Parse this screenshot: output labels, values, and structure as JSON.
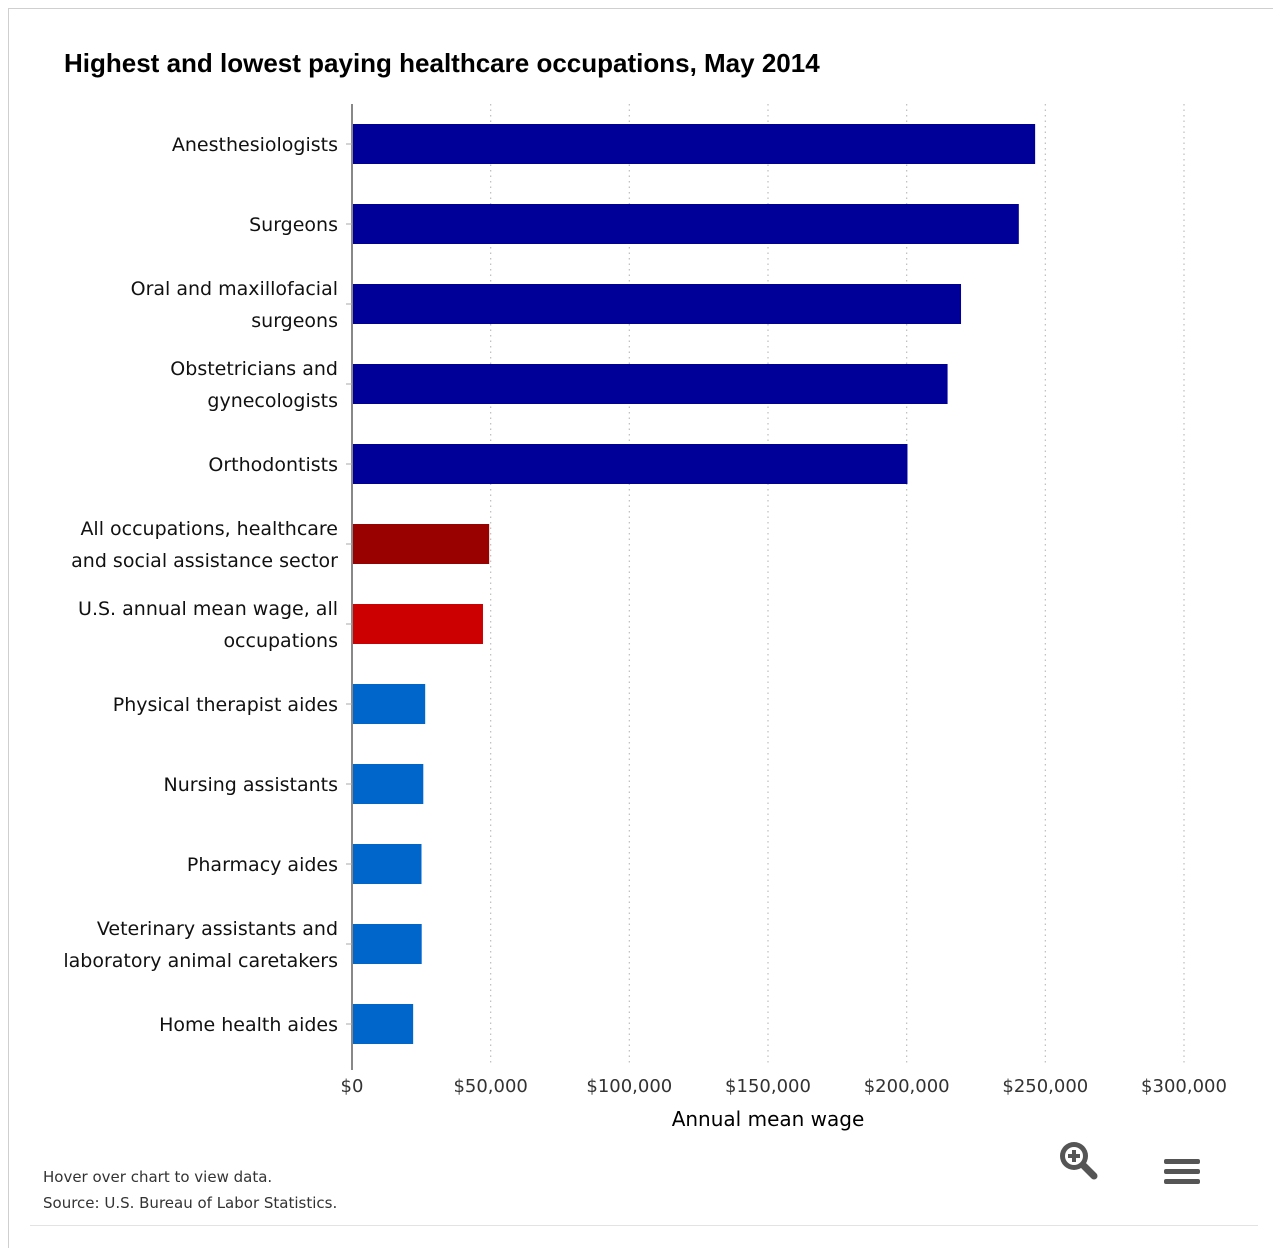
{
  "chart_data": {
    "type": "bar",
    "orientation": "horizontal",
    "title": "Highest and lowest paying healthcare occupations, May 2014",
    "xlabel": "Annual mean wage",
    "ylabel": "",
    "xlim": [
      0,
      300000
    ],
    "xticks": [
      0,
      50000,
      100000,
      150000,
      200000,
      250000,
      300000
    ],
    "xtick_labels": [
      "$0",
      "$50,000",
      "$100,000",
      "$150,000",
      "$200,000",
      "$250,000",
      "$300,000"
    ],
    "grid": "vertical-dotted",
    "categories": [
      [
        "Anesthesiologists"
      ],
      [
        "Surgeons"
      ],
      [
        "Oral and maxillofacial",
        "surgeons"
      ],
      [
        "Obstetricians and",
        "gynecologists"
      ],
      [
        "Orthodontists"
      ],
      [
        "All occupations, healthcare",
        "and social assistance sector"
      ],
      [
        "U.S. annual mean wage, all",
        "occupations"
      ],
      [
        "Physical therapist aides"
      ],
      [
        "Nursing assistants"
      ],
      [
        "Pharmacy aides"
      ],
      [
        "Veterinary assistants and",
        "laboratory animal caretakers"
      ],
      [
        "Home health aides"
      ]
    ],
    "values": [
      246320,
      240440,
      219600,
      214750,
      200290,
      49450,
      47230,
      26390,
      25710,
      25060,
      25130,
      22050
    ],
    "colors": [
      "#000099",
      "#000099",
      "#000099",
      "#000099",
      "#000099",
      "#990000",
      "#cc0000",
      "#0066cc",
      "#0066cc",
      "#0066cc",
      "#0066cc",
      "#0066cc"
    ]
  },
  "footer": {
    "hover_note": "Hover over chart to view data.",
    "source": "Source: U.S. Bureau of Labor Statistics."
  },
  "icons": {
    "zoom": "zoom-in-icon",
    "menu": "hamburger-menu-icon"
  }
}
